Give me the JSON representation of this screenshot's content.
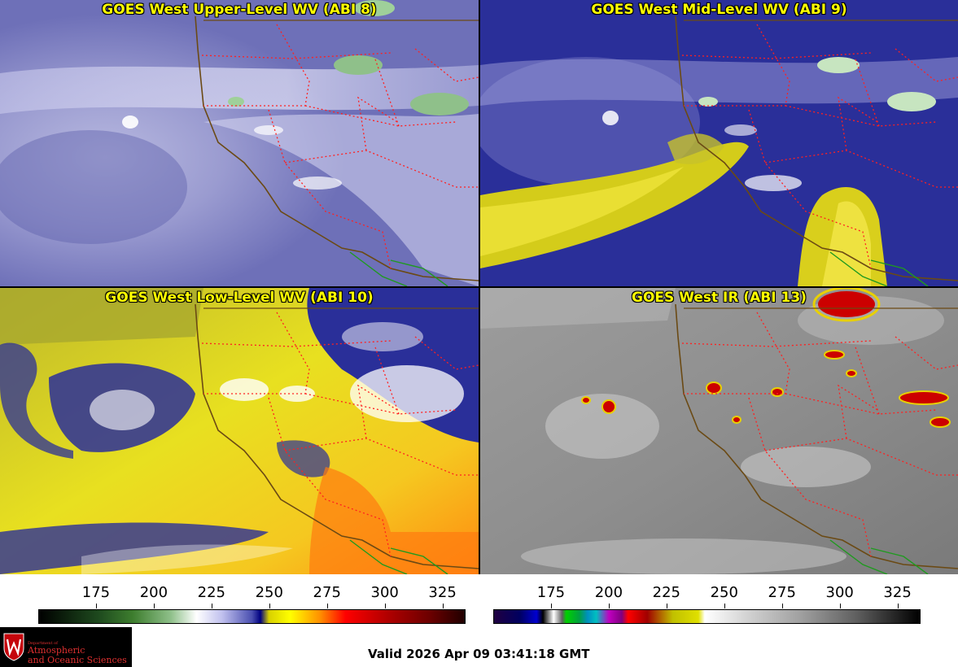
{
  "panels": [
    {
      "title": "GOES West Upper-Level WV (ABI 8)"
    },
    {
      "title": "GOES West Mid-Level WV (ABI 9)"
    },
    {
      "title": "GOES West Low-Level WV (ABI 10)"
    },
    {
      "title": "GOES West IR (ABI 13)"
    }
  ],
  "colorbars": {
    "wv": {
      "ticks": [
        "175",
        "200",
        "225",
        "250",
        "275",
        "300",
        "325"
      ]
    },
    "ir": {
      "ticks": [
        "175",
        "200",
        "225",
        "250",
        "275",
        "300",
        "325"
      ]
    }
  },
  "logo": {
    "line1": "Department of",
    "line2": "Atmospheric",
    "line3": "and Oceanic Sciences"
  },
  "valid_time": "Valid 2026 Apr 09 03:41:18 GMT",
  "colors": {
    "title": "#ffff00",
    "state_borders": "#ff2020",
    "coastline": "#6b4a14",
    "mexico_border": "#1f9a1f"
  }
}
